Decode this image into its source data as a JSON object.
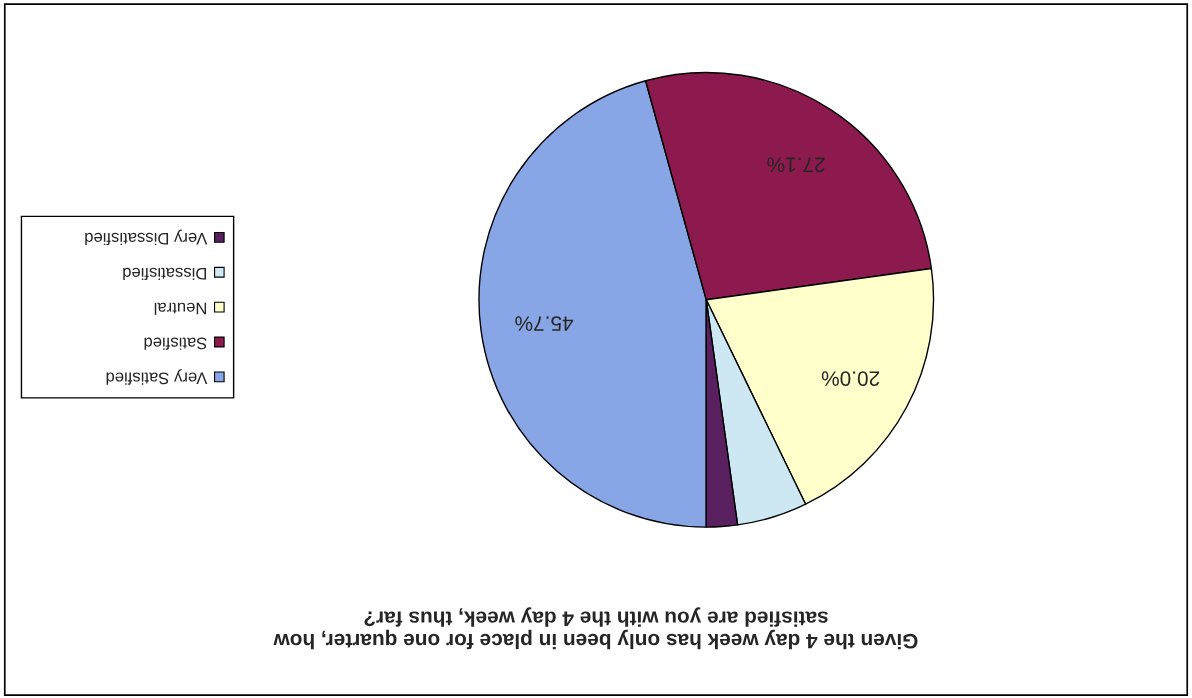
{
  "chart_data": {
    "type": "pie",
    "title": "Given the 4 day week has only been in place for one quarter, how\nsatisfied are you with the 4 day week, thus far?",
    "categories": [
      "Very Satisfied",
      "Satisfied",
      "Neutral",
      "Dissatisfied",
      "Very Dissatisfied"
    ],
    "values": [
      45.7,
      27.1,
      20.0,
      5.0,
      2.2
    ],
    "value_labels": [
      "45.7%",
      "27.1%",
      "20.0%",
      null,
      null
    ],
    "colors": [
      "#88a6e6",
      "#8c1a4e",
      "#ffffcc",
      "#cde8f2",
      "#5a1f5e"
    ],
    "legend": "left"
  }
}
